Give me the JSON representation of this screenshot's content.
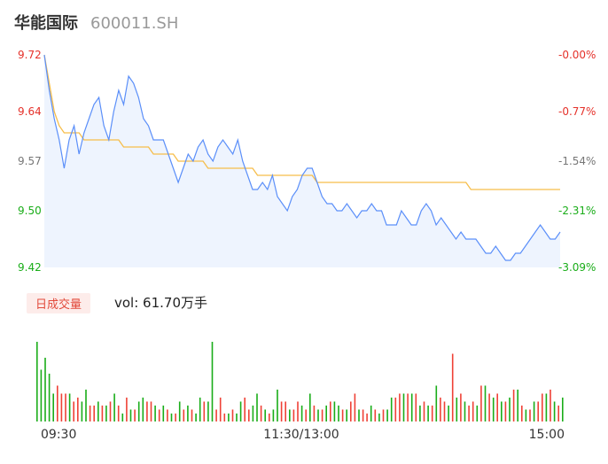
{
  "stock": {
    "name": "华能国际",
    "code": "600011.SH"
  },
  "volume_badge": "日成交量",
  "volume_text": "vol: 61.70万手",
  "colors": {
    "price_line": "#5b8ff9",
    "avg_line": "#f6bd4a",
    "area_fill": "#eef4fe",
    "up": "#ef4136",
    "down": "#1aad19",
    "axis_text": "#333333"
  },
  "chart_data": {
    "type": "line",
    "price_axis": {
      "ylim": [
        9.42,
        9.72
      ],
      "ticks": [
        "9.72",
        "9.64",
        "9.57",
        "9.50",
        "9.42"
      ],
      "tick_values": [
        9.72,
        9.64,
        9.57,
        9.5,
        9.42
      ],
      "pct_ticks": [
        "-0.00%",
        "-0.77%",
        "-1.54%",
        "-2.31%",
        "-3.09%"
      ]
    },
    "time_ticks": [
      "09:30",
      "11:30/13:00",
      "15:00"
    ],
    "series": [
      {
        "key": "price",
        "values": [
          9.72,
          9.67,
          9.63,
          9.6,
          9.56,
          9.6,
          9.62,
          9.58,
          9.61,
          9.63,
          9.65,
          9.66,
          9.62,
          9.6,
          9.64,
          9.67,
          9.65,
          9.69,
          9.68,
          9.66,
          9.63,
          9.62,
          9.6,
          9.6,
          9.6,
          9.58,
          9.56,
          9.54,
          9.56,
          9.58,
          9.57,
          9.59,
          9.6,
          9.58,
          9.57,
          9.59,
          9.6,
          9.59,
          9.58,
          9.6,
          9.57,
          9.55,
          9.53,
          9.53,
          9.54,
          9.53,
          9.55,
          9.52,
          9.51,
          9.5,
          9.52,
          9.53,
          9.55,
          9.56,
          9.56,
          9.54,
          9.52,
          9.51,
          9.51,
          9.5,
          9.5,
          9.51,
          9.5,
          9.49,
          9.5,
          9.5,
          9.51,
          9.5,
          9.5,
          9.48,
          9.48,
          9.48,
          9.5,
          9.49,
          9.48,
          9.48,
          9.5,
          9.51,
          9.5,
          9.48,
          9.49,
          9.48,
          9.47,
          9.46,
          9.47,
          9.46,
          9.46,
          9.46,
          9.45,
          9.44,
          9.44,
          9.45,
          9.44,
          9.43,
          9.43,
          9.44,
          9.44,
          9.45,
          9.46,
          9.47,
          9.48,
          9.47,
          9.46,
          9.46,
          9.47
        ]
      },
      {
        "key": "avg",
        "values": [
          9.72,
          9.68,
          9.64,
          9.62,
          9.61,
          9.61,
          9.61,
          9.61,
          9.6,
          9.6,
          9.6,
          9.6,
          9.6,
          9.6,
          9.6,
          9.6,
          9.59,
          9.59,
          9.59,
          9.59,
          9.59,
          9.59,
          9.58,
          9.58,
          9.58,
          9.58,
          9.58,
          9.57,
          9.57,
          9.57,
          9.57,
          9.57,
          9.57,
          9.56,
          9.56,
          9.56,
          9.56,
          9.56,
          9.56,
          9.56,
          9.56,
          9.56,
          9.56,
          9.55,
          9.55,
          9.55,
          9.55,
          9.55,
          9.55,
          9.55,
          9.55,
          9.55,
          9.55,
          9.55,
          9.55,
          9.54,
          9.54,
          9.54,
          9.54,
          9.54,
          9.54,
          9.54,
          9.54,
          9.54,
          9.54,
          9.54,
          9.54,
          9.54,
          9.54,
          9.54,
          9.54,
          9.54,
          9.54,
          9.54,
          9.54,
          9.54,
          9.54,
          9.54,
          9.54,
          9.54,
          9.54,
          9.54,
          9.54,
          9.54,
          9.54,
          9.54,
          9.53,
          9.53,
          9.53,
          9.53,
          9.53,
          9.53,
          9.53,
          9.53,
          9.53,
          9.53,
          9.53,
          9.53,
          9.53,
          9.53,
          9.53,
          9.53,
          9.53,
          9.53,
          9.53
        ]
      }
    ],
    "volume": {
      "values": [
        100,
        65,
        80,
        60,
        35,
        45,
        35,
        35,
        35,
        25,
        30,
        25,
        40,
        20,
        20,
        25,
        20,
        20,
        25,
        35,
        20,
        10,
        30,
        15,
        15,
        25,
        30,
        25,
        25,
        20,
        15,
        20,
        15,
        10,
        10,
        25,
        15,
        20,
        15,
        10,
        30,
        25,
        25,
        100,
        15,
        30,
        10,
        10,
        15,
        10,
        25,
        30,
        15,
        20,
        35,
        20,
        15,
        10,
        15,
        40,
        25,
        25,
        15,
        15,
        25,
        20,
        15,
        35,
        20,
        15,
        15,
        20,
        25,
        25,
        20,
        15,
        15,
        25,
        35,
        15,
        15,
        10,
        20,
        15,
        10,
        15,
        15,
        30,
        30,
        35,
        35,
        35,
        35,
        35,
        20,
        25,
        20,
        20,
        45,
        30,
        25,
        20,
        85,
        30,
        35,
        25,
        20,
        25,
        20,
        45,
        45,
        35,
        30,
        35,
        25,
        25,
        30,
        40,
        40,
        20,
        15,
        15,
        25,
        25,
        35,
        35,
        40,
        25,
        20,
        30
      ],
      "colors": [
        "down",
        "down",
        "down",
        "down",
        "down",
        "up",
        "up",
        "up",
        "down",
        "up",
        "up",
        "down",
        "down",
        "up",
        "up",
        "down",
        "up",
        "down",
        "up",
        "down",
        "up",
        "down",
        "up",
        "down",
        "up",
        "down",
        "down",
        "up",
        "up",
        "down",
        "up",
        "down",
        "up",
        "down",
        "up",
        "down",
        "up",
        "down",
        "up",
        "down",
        "down",
        "up",
        "down",
        "down",
        "up",
        "up",
        "up",
        "down",
        "up",
        "down",
        "down",
        "up",
        "up",
        "down",
        "down",
        "up",
        "down",
        "up",
        "down",
        "down",
        "up",
        "up",
        "down",
        "up",
        "up",
        "down",
        "up",
        "down",
        "up",
        "down",
        "up",
        "down",
        "up",
        "down",
        "down",
        "up",
        "down",
        "up",
        "up",
        "down",
        "up",
        "up",
        "down",
        "up",
        "down",
        "up",
        "down",
        "down",
        "up",
        "up",
        "down",
        "up",
        "down",
        "up",
        "down",
        "up",
        "down",
        "up",
        "down",
        "up",
        "up",
        "down",
        "up",
        "down",
        "up",
        "down",
        "up",
        "up",
        "down",
        "up",
        "down",
        "up",
        "down",
        "up",
        "down",
        "up",
        "down",
        "up",
        "down",
        "up",
        "down",
        "up",
        "down",
        "up",
        "up",
        "down",
        "up",
        "down",
        "up",
        "down"
      ]
    }
  }
}
